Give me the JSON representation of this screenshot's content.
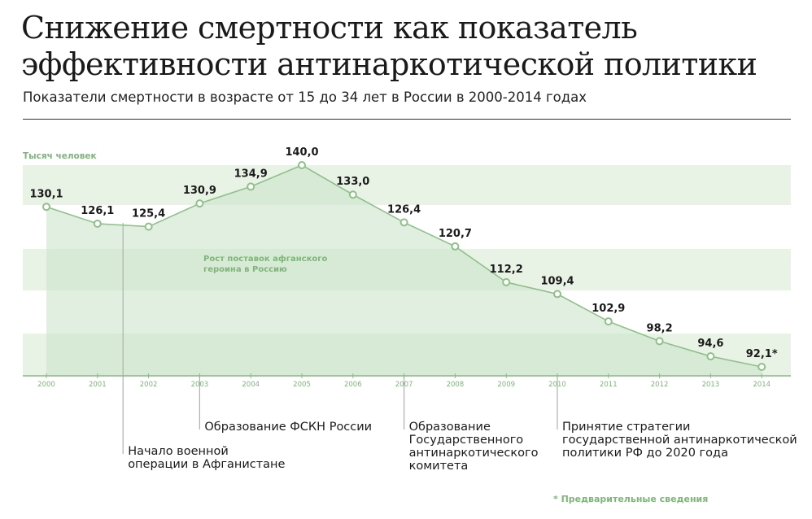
{
  "title_line1": "Снижение смертности как показатель",
  "title_line2": "эффективности антинаркотической политики",
  "subtitle": "Показатели смертности в возрасте от 15 до 34 лет в России в 2000-2014 годах",
  "colors": {
    "line": "#8fc08a",
    "band": "#e8f3e6",
    "area": "#c9e2c6",
    "accent_text": "#7fb57a",
    "axis": "#8ab887",
    "annotation_line": "#b0b0b0"
  },
  "chart_data": {
    "type": "area",
    "unit_label": "Тысяч человек",
    "x": [
      "2000",
      "2001",
      "2002",
      "2003",
      "2004",
      "2005",
      "2006",
      "2007",
      "2008",
      "2009",
      "2010",
      "2011",
      "2012",
      "2013",
      "2014"
    ],
    "values": [
      130.1,
      126.1,
      125.4,
      130.9,
      134.9,
      140.0,
      133.0,
      126.4,
      120.7,
      112.2,
      109.4,
      102.9,
      98.2,
      94.6,
      92.1
    ],
    "value_labels": [
      "130,1",
      "126,1",
      "125,4",
      "130,9",
      "134,9",
      "140,0",
      "133,0",
      "126,4",
      "120,7",
      "112,2",
      "109,4",
      "102,9",
      "98,2",
      "94,6",
      "92,1*"
    ],
    "ylim": [
      92.1,
      140.0
    ],
    "area_label": "Рост поставок афганского героина в Россию",
    "footnote": "* Предварительные сведения"
  },
  "annotations": [
    {
      "year_pos": 2001.5,
      "text": [
        "Начало военной",
        "операции в Афганистане"
      ]
    },
    {
      "year_pos": 2003,
      "text": [
        "Образование ФСКН России"
      ]
    },
    {
      "year_pos": 2007,
      "text": [
        "Образование",
        "Государственного",
        "антинаркотического",
        "комитета"
      ]
    },
    {
      "year_pos": 2010,
      "text": [
        "Принятие стратегии",
        "государственной антинаркотической",
        "политики РФ до 2020 года"
      ]
    }
  ]
}
